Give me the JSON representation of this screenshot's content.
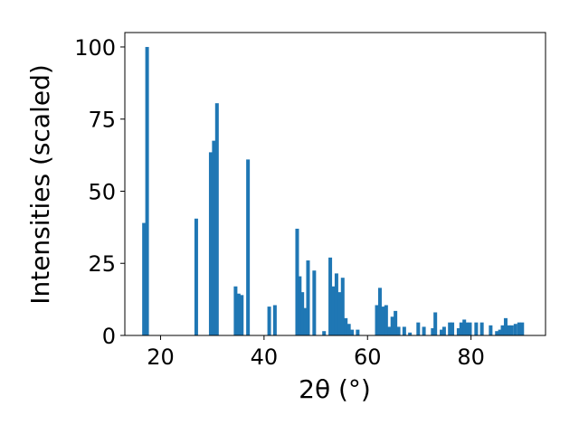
{
  "chart_data": {
    "type": "bar",
    "xlabel": "2θ (°)",
    "ylabel": "Intensities (scaled)",
    "xlim": [
      13.1,
      94.4
    ],
    "ylim": [
      0,
      105
    ],
    "xticks": [
      20,
      40,
      60,
      80
    ],
    "yticks": [
      0,
      25,
      50,
      75,
      100
    ],
    "grid": false,
    "bar_color": "#1f77b4",
    "bar_width": 0.7,
    "x": [
      16.8,
      17.4,
      26.9,
      29.7,
      30.3,
      30.9,
      34.5,
      35.1,
      35.7,
      36.9,
      41.0,
      42.1,
      46.4,
      46.9,
      47.4,
      47.9,
      48.5,
      49.7,
      51.6,
      52.8,
      53.4,
      54.0,
      54.6,
      55.2,
      55.8,
      56.4,
      57.0,
      58.1,
      61.8,
      62.4,
      63.0,
      63.6,
      64.2,
      64.8,
      65.4,
      66.0,
      67.1,
      68.2,
      69.8,
      70.9,
      72.6,
      73.1,
      74.3,
      74.8,
      75.9,
      76.4,
      77.6,
      78.1,
      78.7,
      79.2,
      79.8,
      81.0,
      82.1,
      83.8,
      85.0,
      85.6,
      86.1,
      86.7,
      87.3,
      87.9,
      88.6,
      89.3,
      89.9
    ],
    "values": [
      39,
      100,
      40.5,
      63.5,
      67.5,
      80.5,
      17,
      14.5,
      14,
      61,
      10,
      10.5,
      37,
      20.5,
      15,
      9.5,
      26,
      22.5,
      1.5,
      27,
      17,
      21.5,
      15,
      20,
      6,
      4,
      2,
      2,
      10.5,
      16.5,
      10,
      10.5,
      3,
      6.5,
      8.5,
      3,
      3,
      1,
      4.5,
      3,
      2.5,
      8,
      2,
      3,
      4.5,
      4.5,
      2.5,
      4.5,
      5.5,
      4.5,
      4.5,
      4.5,
      4.5,
      3.5,
      1.5,
      2,
      3.5,
      6,
      3.5,
      3.5,
      4,
      4.5,
      4.5
    ]
  }
}
